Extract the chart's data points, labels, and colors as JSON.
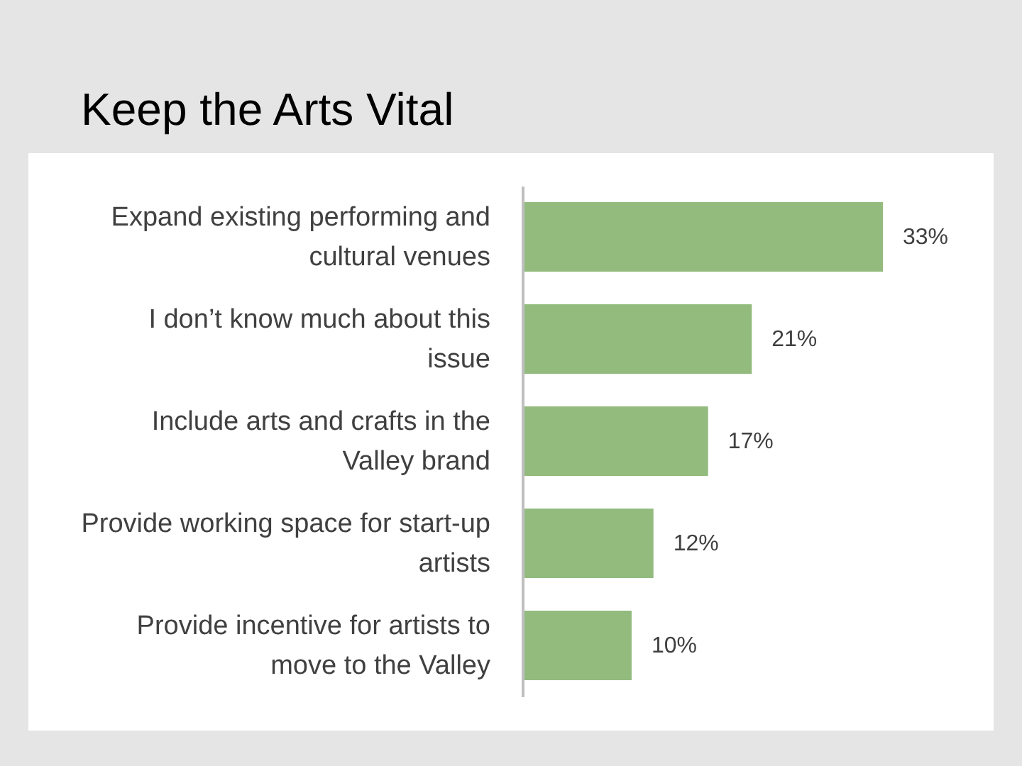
{
  "chart_data": {
    "type": "bar",
    "orientation": "horizontal",
    "title": "Keep the Arts Vital",
    "categories": [
      "Expand existing performing and\ncultural venues",
      "I don’t know much about this\nissue",
      "Include arts and crafts in the\nValley brand",
      "Provide working space for start-up\nartists",
      "Provide incentive for artists to\nmove to the Valley"
    ],
    "values": [
      33,
      21,
      17,
      12,
      10
    ],
    "color": "#93bb7e",
    "value_labels": [
      "33%",
      "21%",
      "17%",
      "12%",
      "10%"
    ]
  }
}
